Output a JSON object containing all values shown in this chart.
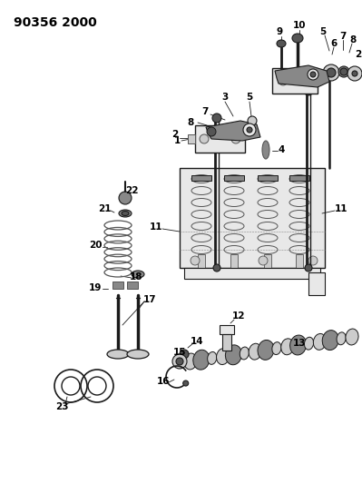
{
  "title": "90356 2000",
  "bg_color": "#ffffff",
  "line_color": "#1a1a1a",
  "gray_dark": "#555555",
  "gray_med": "#888888",
  "gray_light": "#cccccc",
  "gray_fill": "#e8e8e8",
  "title_fontsize": 10,
  "label_fontsize": 7.5,
  "figsize": [
    3.99,
    5.33
  ],
  "dpi": 100
}
